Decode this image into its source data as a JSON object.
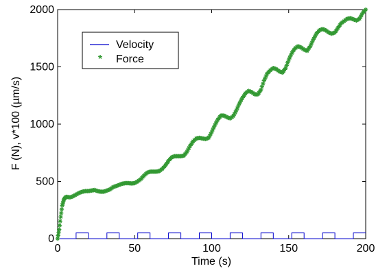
{
  "chart_data": {
    "type": "line",
    "title": "",
    "xlabel": "Time (s)",
    "ylabel": "F (N), v*100 (µm/s)",
    "xlim": [
      0,
      200
    ],
    "ylim": [
      0,
      2000
    ],
    "xticks": [
      0,
      50,
      100,
      150,
      200
    ],
    "yticks": [
      0,
      500,
      1000,
      1500,
      2000
    ],
    "xtick_labels": [
      "0",
      "50",
      "100",
      "150",
      "200"
    ],
    "ytick_labels": [
      "0",
      "500",
      "1000",
      "1500",
      "2000"
    ],
    "grid": false,
    "legend_position": "top-left",
    "series": [
      {
        "name": "Velocity",
        "color": "#0000cc",
        "style": "line",
        "x": [
          0,
          12,
          12,
          20,
          20,
          32,
          32,
          40,
          40,
          52,
          52,
          60,
          60,
          72,
          72,
          80,
          80,
          92,
          92,
          100,
          100,
          112,
          112,
          120,
          120,
          132,
          132,
          140,
          140,
          152,
          152,
          160,
          160,
          172,
          172,
          180,
          180,
          192,
          192,
          200
        ],
        "values": [
          0,
          0,
          50,
          50,
          0,
          0,
          50,
          50,
          0,
          0,
          50,
          50,
          0,
          0,
          50,
          50,
          0,
          0,
          50,
          50,
          0,
          0,
          50,
          50,
          0,
          0,
          50,
          50,
          0,
          0,
          50,
          50,
          0,
          0,
          50,
          50,
          0,
          0,
          50,
          50
        ]
      },
      {
        "name": "Force",
        "color": "#339933",
        "style": "star-markers",
        "x": [
          0,
          1,
          2,
          3,
          4,
          5,
          6,
          8,
          10,
          12,
          14,
          16,
          18,
          20,
          22,
          24,
          26,
          28,
          30,
          32,
          34,
          36,
          38,
          40,
          42,
          44,
          46,
          48,
          50,
          52,
          54,
          56,
          58,
          60,
          62,
          64,
          66,
          68,
          70,
          72,
          74,
          76,
          78,
          80,
          82,
          84,
          86,
          88,
          90,
          92,
          94,
          96,
          98,
          100,
          102,
          104,
          106,
          108,
          110,
          112,
          114,
          116,
          118,
          120,
          122,
          124,
          126,
          128,
          130,
          132,
          134,
          136,
          138,
          140,
          142,
          144,
          146,
          148,
          150,
          152,
          154,
          156,
          158,
          160,
          162,
          164,
          166,
          168,
          170,
          172,
          174,
          176,
          178,
          180,
          182,
          184,
          186,
          188,
          190,
          192,
          194,
          196,
          198,
          200
        ],
        "values": [
          0,
          80,
          190,
          290,
          340,
          360,
          365,
          360,
          370,
          385,
          400,
          410,
          415,
          415,
          420,
          425,
          415,
          410,
          410,
          420,
          430,
          450,
          460,
          470,
          480,
          485,
          485,
          482,
          485,
          500,
          520,
          550,
          575,
          585,
          585,
          585,
          590,
          610,
          640,
          680,
          710,
          720,
          720,
          720,
          725,
          760,
          810,
          850,
          875,
          880,
          875,
          870,
          880,
          930,
          990,
          1040,
          1075,
          1075,
          1060,
          1050,
          1070,
          1120,
          1180,
          1230,
          1270,
          1290,
          1280,
          1260,
          1260,
          1300,
          1380,
          1440,
          1470,
          1490,
          1480,
          1460,
          1450,
          1490,
          1560,
          1620,
          1660,
          1680,
          1670,
          1650,
          1640,
          1680,
          1740,
          1790,
          1820,
          1830,
          1820,
          1800,
          1790,
          1800,
          1840,
          1880,
          1900,
          1920,
          1925,
          1915,
          1905,
          1920,
          1970,
          2000
        ]
      }
    ]
  }
}
